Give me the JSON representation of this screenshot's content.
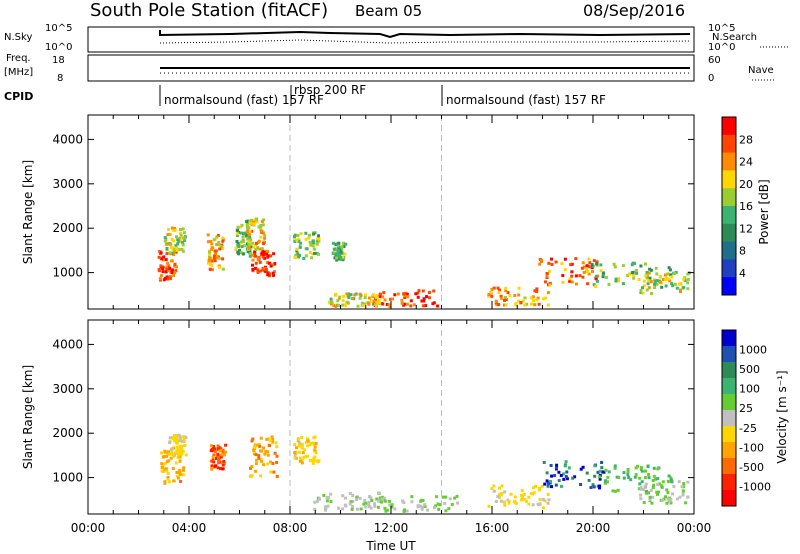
{
  "header": {
    "title": "South Pole Station (fitACF)",
    "beam": "Beam 05",
    "date": "08/Sep/2016"
  },
  "side_labels": {
    "nsky": "N.Sky",
    "nsearch": "N.Search",
    "freq_top": "Freq.",
    "freq_unit": "[MHz]",
    "nave": "Nave",
    "cpid": "CPID"
  },
  "top_axes": {
    "noise_left_ticks": [
      "10^5",
      "10^0"
    ],
    "noise_right_ticks": [
      "10^5",
      "10^0"
    ],
    "freq_left_ticks": [
      "18",
      "8"
    ],
    "nave_right_ticks": [
      "60",
      "0"
    ]
  },
  "cpid_segments": [
    {
      "label": "normalsound (fast) 157 RF",
      "start": 2.75
    },
    {
      "label": "rbsp 200 RF",
      "start": 8.0
    },
    {
      "label": "normalsound (fast) 157 RF",
      "start": 14.0
    }
  ],
  "colorbars": {
    "power": {
      "title": "Power [dB]",
      "ticks": [
        "28",
        "24",
        "20",
        "16",
        "12",
        "8",
        "4"
      ],
      "colors": [
        "#ff0000",
        "#ff4500",
        "#ff8c00",
        "#ffd700",
        "#9acd32",
        "#3cb371",
        "#2e8b57",
        "#1f6f8b",
        "#2040c0",
        "#0000ff"
      ]
    },
    "velocity": {
      "title": "Velocity [m s⁻¹]",
      "ticks": [
        "1000",
        "500",
        "100",
        "25",
        "-25",
        "-100",
        "-500",
        "-1000"
      ],
      "colors": [
        "#0000cc",
        "#1e4fb3",
        "#2e8b57",
        "#3cb371",
        "#66cc33",
        "#c0c0c0",
        "#ffd700",
        "#ffa500",
        "#ff6a00",
        "#ff2200",
        "#ff0000"
      ]
    }
  },
  "range_axis": {
    "label": "Slant Range [km]",
    "ticks": [
      "4000",
      "3000",
      "2000",
      "1000"
    ]
  },
  "time_axis": {
    "label": "Time UT",
    "ticks": [
      "00:00",
      "04:00",
      "08:00",
      "12:00",
      "16:00",
      "20:00",
      "00:00"
    ]
  },
  "chart_data": [
    {
      "type": "heatmap",
      "title": "Power",
      "xlabel": "Time UT",
      "ylabel": "Slant Range [km]",
      "xlim": [
        0,
        24
      ],
      "ylim": [
        180,
        4550
      ],
      "colorbar": "Power [dB]",
      "clim": [
        0,
        30
      ],
      "blobs": [
        {
          "t": 3.1,
          "r": 1200,
          "dt": 0.35,
          "dr": 350,
          "v": 26
        },
        {
          "t": 3.4,
          "r": 1750,
          "dt": 0.4,
          "dr": 300,
          "v": 18
        },
        {
          "t": 5.0,
          "r": 1500,
          "dt": 0.3,
          "dr": 400,
          "v": 22
        },
        {
          "t": 6.1,
          "r": 1800,
          "dt": 0.3,
          "dr": 400,
          "v": 14
        },
        {
          "t": 6.9,
          "r": 1250,
          "dt": 0.45,
          "dr": 300,
          "v": 27
        },
        {
          "t": 6.6,
          "r": 1900,
          "dt": 0.35,
          "dr": 350,
          "v": 20
        },
        {
          "t": 8.6,
          "r": 1650,
          "dt": 0.5,
          "dr": 300,
          "v": 16
        },
        {
          "t": 9.9,
          "r": 1500,
          "dt": 0.25,
          "dr": 200,
          "v": 14
        },
        {
          "t": 12.5,
          "r": 450,
          "dt": 1.3,
          "dr": 180,
          "v": 26
        },
        {
          "t": 10.5,
          "r": 420,
          "dt": 1.0,
          "dr": 150,
          "v": 18
        },
        {
          "t": 17.0,
          "r": 500,
          "dt": 1.2,
          "dr": 200,
          "v": 22
        },
        {
          "t": 19.0,
          "r": 1050,
          "dt": 1.2,
          "dr": 300,
          "v": 25
        },
        {
          "t": 21.5,
          "r": 950,
          "dt": 1.6,
          "dr": 300,
          "v": 14
        },
        {
          "t": 22.8,
          "r": 800,
          "dt": 1.0,
          "dr": 250,
          "v": 18
        }
      ]
    },
    {
      "type": "heatmap",
      "title": "Velocity",
      "xlabel": "Time UT",
      "ylabel": "Slant Range [km]",
      "xlim": [
        0,
        24
      ],
      "ylim": [
        180,
        4550
      ],
      "colorbar": "Velocity [m s-1]",
      "clim": [
        -1000,
        1000
      ],
      "blobs": [
        {
          "t": 3.3,
          "r": 1300,
          "dt": 0.45,
          "dr": 400,
          "v": -300
        },
        {
          "t": 3.5,
          "r": 1750,
          "dt": 0.35,
          "dr": 250,
          "v": -150
        },
        {
          "t": 5.1,
          "r": 1500,
          "dt": 0.3,
          "dr": 300,
          "v": -600
        },
        {
          "t": 6.9,
          "r": 1500,
          "dt": 0.55,
          "dr": 450,
          "v": -350
        },
        {
          "t": 8.6,
          "r": 1650,
          "dt": 0.5,
          "dr": 300,
          "v": -200
        },
        {
          "t": 10.2,
          "r": 500,
          "dt": 1.3,
          "dr": 200,
          "v": 60
        },
        {
          "t": 13.0,
          "r": 450,
          "dt": 1.6,
          "dr": 180,
          "v": 80
        },
        {
          "t": 17.0,
          "r": 600,
          "dt": 1.2,
          "dr": 250,
          "v": -150
        },
        {
          "t": 19.3,
          "r": 1100,
          "dt": 1.3,
          "dr": 300,
          "v": 700
        },
        {
          "t": 21.8,
          "r": 1000,
          "dt": 1.6,
          "dr": 300,
          "v": 300
        },
        {
          "t": 22.8,
          "r": 700,
          "dt": 1.0,
          "dr": 250,
          "v": 80
        }
      ]
    }
  ]
}
